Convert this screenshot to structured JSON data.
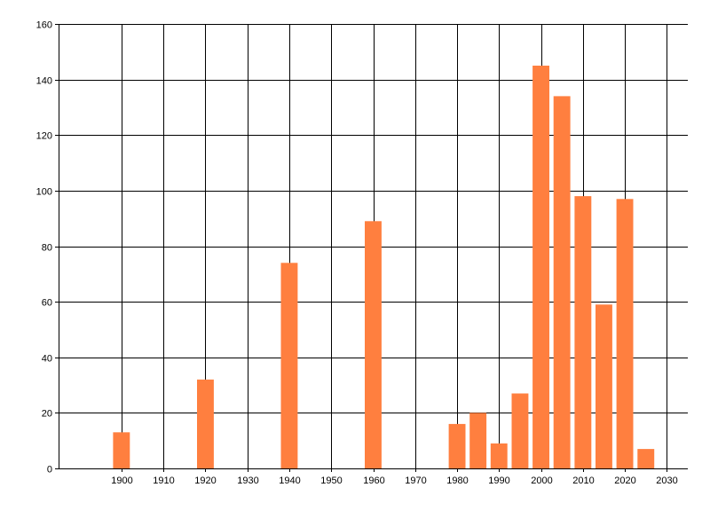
{
  "chart_data": {
    "type": "bar",
    "title": "",
    "xlabel": "",
    "ylabel": "",
    "x": [
      1900,
      1920,
      1940,
      1960,
      1980,
      1985,
      1990,
      1995,
      2000,
      2005,
      2010,
      2015,
      2020,
      2025
    ],
    "values": [
      13,
      32,
      74,
      89,
      16,
      20,
      9,
      27,
      145,
      134,
      98,
      59,
      97,
      7
    ],
    "xlim": [
      1885,
      2035
    ],
    "ylim": [
      0,
      160
    ],
    "x_ticks": [
      "1900",
      "1910",
      "1920",
      "1930",
      "1940",
      "1950",
      "1960",
      "1970",
      "1980",
      "1990",
      "2000",
      "2010",
      "2020",
      "2030"
    ],
    "y_ticks": [
      "0",
      "20",
      "40",
      "60",
      "80",
      "100",
      "120",
      "140",
      "160"
    ],
    "grid": true,
    "legend": "none",
    "bar_color": "#FF7F3F",
    "grid_color": "#000000"
  }
}
